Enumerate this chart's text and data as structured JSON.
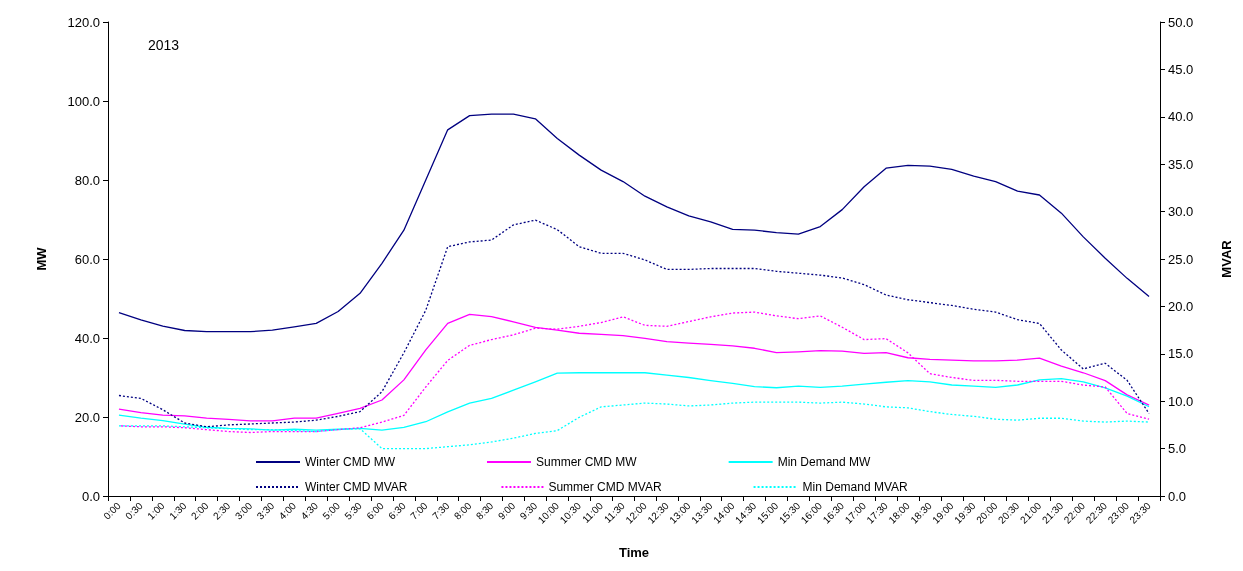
{
  "chart_data": {
    "type": "line",
    "xlabel": "Time",
    "ylabel": "MW",
    "y2label": "MVAR",
    "annotations": [
      "2013"
    ],
    "categories": [
      "0:00",
      "0:30",
      "1:00",
      "1:30",
      "2:00",
      "2:30",
      "3:00",
      "3:30",
      "4:00",
      "4:30",
      "5:00",
      "5:30",
      "6:00",
      "6:30",
      "7:00",
      "7:30",
      "8:00",
      "8:30",
      "9:00",
      "9:30",
      "10:00",
      "10:30",
      "11:00",
      "11:30",
      "12:00",
      "12:30",
      "13:00",
      "13:30",
      "14:00",
      "14:30",
      "15:00",
      "15:30",
      "16:00",
      "16:30",
      "17:00",
      "17:30",
      "18:00",
      "18:30",
      "19:00",
      "19:30",
      "20:00",
      "20:30",
      "21:00",
      "21:30",
      "22:00",
      "22:30",
      "23:00",
      "23:30"
    ],
    "ylim": [
      0,
      120
    ],
    "yticks": [
      {
        "value": 0,
        "label": "0.0"
      },
      {
        "value": 20,
        "label": "20.0"
      },
      {
        "value": 40,
        "label": "40.0"
      },
      {
        "value": 60,
        "label": "60.0"
      },
      {
        "value": 80,
        "label": "80.0"
      },
      {
        "value": 100,
        "label": "100.0"
      },
      {
        "value": 120,
        "label": "120.0"
      }
    ],
    "y2lim": [
      0,
      50
    ],
    "y2ticks": [
      {
        "value": 0,
        "label": "0.0"
      },
      {
        "value": 5,
        "label": "5.0"
      },
      {
        "value": 10,
        "label": "10.0"
      },
      {
        "value": 15,
        "label": "15.0"
      },
      {
        "value": 20,
        "label": "20.0"
      },
      {
        "value": 25,
        "label": "25.0"
      },
      {
        "value": 30,
        "label": "30.0"
      },
      {
        "value": 35,
        "label": "35.0"
      },
      {
        "value": 40,
        "label": "40.0"
      },
      {
        "value": 45,
        "label": "45.0"
      },
      {
        "value": 50,
        "label": "50.0"
      }
    ],
    "grid": false,
    "legend": "bottom",
    "marker": "none",
    "series": [
      {
        "name": "Winter CMD MW",
        "color": "#000080",
        "line_style": "solid",
        "values": [
          46.4,
          44.6,
          43.0,
          41.9,
          41.6,
          41.6,
          41.6,
          42.0,
          42.8,
          43.7,
          46.7,
          51.3,
          58.9,
          67.3,
          80.0,
          92.7,
          96.3,
          96.7,
          96.7,
          95.5,
          90.5,
          86.3,
          82.5,
          79.6,
          75.9,
          73.2,
          70.9,
          69.4,
          67.5,
          67.3,
          66.7,
          66.3,
          68.2,
          72.5,
          78.3,
          83.0,
          83.7,
          83.5,
          82.7,
          81.0,
          79.6,
          77.2,
          76.2,
          71.6,
          65.6,
          60.2,
          55.1,
          50.5
        ]
      },
      {
        "name": "Summer CMD MW",
        "color": "#ff00ff",
        "line_style": "solid",
        "values": [
          22.0,
          21.1,
          20.5,
          20.3,
          19.7,
          19.4,
          19.0,
          19.0,
          19.7,
          19.7,
          20.9,
          22.2,
          24.3,
          29.4,
          37.0,
          43.7,
          46.0,
          45.4,
          44.1,
          42.7,
          42.0,
          41.2,
          40.9,
          40.6,
          39.9,
          39.1,
          38.7,
          38.4,
          38.0,
          37.4,
          36.3,
          36.5,
          36.8,
          36.7,
          36.1,
          36.3,
          35.0,
          34.6,
          34.4,
          34.2,
          34.2,
          34.4,
          34.9,
          32.9,
          31.2,
          29.2,
          25.6,
          23.0
        ]
      },
      {
        "name": "Min Demand MW",
        "color": "#00ffff",
        "line_style": "solid",
        "values": [
          20.5,
          19.7,
          19.1,
          18.2,
          17.4,
          17.1,
          17.0,
          16.7,
          16.9,
          16.7,
          16.9,
          17.1,
          16.7,
          17.4,
          18.8,
          21.3,
          23.5,
          24.7,
          26.8,
          28.9,
          31.1,
          31.2,
          31.2,
          31.2,
          31.2,
          30.6,
          30.0,
          29.2,
          28.5,
          27.7,
          27.4,
          27.8,
          27.5,
          27.8,
          28.3,
          28.8,
          29.2,
          28.9,
          28.1,
          27.8,
          27.5,
          28.1,
          29.4,
          29.7,
          28.9,
          27.4,
          25.3,
          22.6
        ]
      },
      {
        "name": "Winter CMD MVAR",
        "color": "#000080",
        "line_style": "dotted",
        "axis": "y2",
        "values": [
          10.6,
          10.3,
          9.1,
          7.7,
          7.3,
          7.5,
          7.6,
          7.7,
          7.8,
          8.0,
          8.4,
          8.9,
          11.0,
          15.1,
          19.6,
          26.3,
          26.8,
          27.0,
          28.6,
          29.1,
          28.1,
          26.3,
          25.6,
          25.6,
          24.9,
          23.9,
          23.9,
          24.0,
          24.0,
          24.0,
          23.7,
          23.5,
          23.3,
          23.0,
          22.3,
          21.2,
          20.7,
          20.4,
          20.1,
          19.7,
          19.4,
          18.6,
          18.2,
          15.4,
          13.4,
          14.0,
          12.2,
          8.7
        ]
      },
      {
        "name": "Summer CMD MVAR",
        "color": "#ff00ff",
        "line_style": "dotted",
        "axis": "y2",
        "values": [
          7.4,
          7.3,
          7.3,
          7.2,
          7.0,
          6.8,
          6.7,
          6.8,
          6.8,
          6.8,
          7.0,
          7.2,
          7.8,
          8.5,
          11.5,
          14.3,
          15.9,
          16.5,
          17.0,
          17.7,
          17.6,
          17.9,
          18.3,
          18.9,
          18.0,
          17.9,
          18.4,
          18.9,
          19.3,
          19.4,
          19.0,
          18.7,
          19.0,
          17.8,
          16.5,
          16.6,
          15.1,
          12.9,
          12.5,
          12.2,
          12.2,
          12.1,
          12.1,
          12.1,
          11.7,
          11.5,
          8.7,
          8.1
        ]
      },
      {
        "name": "Min Demand MVAR",
        "color": "#00ffff",
        "line_style": "dotted",
        "axis": "y2",
        "values": [
          7.4,
          7.4,
          7.4,
          7.3,
          7.2,
          7.1,
          7.0,
          7.0,
          6.9,
          6.8,
          7.0,
          7.1,
          5.0,
          5.0,
          5.0,
          5.2,
          5.4,
          5.7,
          6.1,
          6.6,
          6.9,
          8.3,
          9.4,
          9.6,
          9.8,
          9.7,
          9.5,
          9.6,
          9.8,
          9.9,
          9.9,
          9.9,
          9.8,
          9.9,
          9.7,
          9.4,
          9.3,
          8.9,
          8.6,
          8.4,
          8.1,
          8.0,
          8.2,
          8.2,
          7.9,
          7.8,
          7.9,
          7.8
        ]
      }
    ]
  }
}
